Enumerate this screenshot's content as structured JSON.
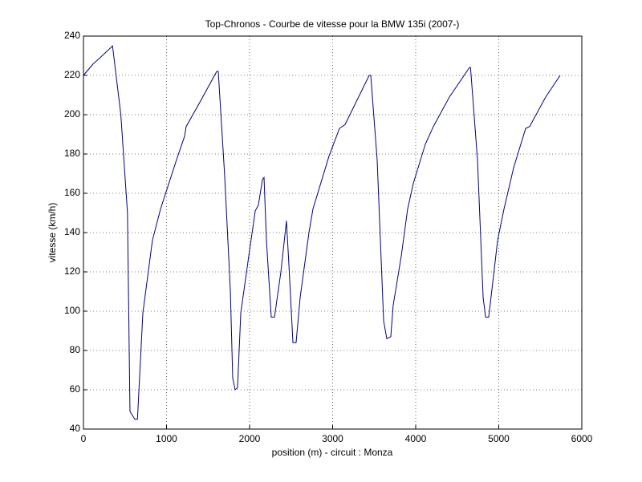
{
  "chart_data": {
    "type": "line",
    "title": "Top-Chronos - Courbe de vitesse pour la BMW 135i (2007-)",
    "x_label": "position (m) - circuit : Monza",
    "y_label": "vitesse (km/h)",
    "x": [
      0,
      100,
      120,
      200,
      350,
      450,
      530,
      560,
      618,
      650,
      715,
      830,
      928,
      1120,
      1217,
      1237,
      1410,
      1604,
      1623,
      1700,
      1768,
      1797,
      1826,
      1855,
      1894,
      1990,
      2068,
      2106,
      2155,
      2174,
      2203,
      2261,
      2300,
      2377,
      2444,
      2473,
      2522,
      2560,
      2609,
      2715,
      2763,
      2957,
      3082,
      3150,
      3440,
      3459,
      3536,
      3614,
      3652,
      3700,
      3729,
      3826,
      3903,
      3971,
      4116,
      4213,
      4406,
      4647,
      4660,
      4744,
      4812,
      4841,
      4879,
      4937,
      4986,
      5063,
      5179,
      5324,
      5372,
      5565,
      5739
    ],
    "series": [
      {
        "name": "vitesse",
        "color": "#00007f",
        "values": [
          220,
          225,
          226,
          229,
          235,
          200,
          150,
          49,
          45,
          45,
          99,
          136,
          152,
          177,
          189,
          194,
          207,
          222,
          222,
          169,
          111,
          66,
          60,
          61,
          99,
          128,
          151,
          154,
          167,
          168,
          136,
          97,
          97,
          120,
          146,
          124,
          84,
          84,
          107,
          140,
          152,
          179,
          193,
          195,
          220,
          220,
          177,
          95,
          86,
          87,
          103,
          128,
          152,
          165,
          185,
          194,
          209,
          224,
          224,
          177,
          107,
          97,
          97,
          118,
          136,
          152,
          173,
          193,
          194,
          209,
          220
        ]
      }
    ],
    "xlim": [
      0,
      6000
    ],
    "xticks": [
      0,
      1000,
      2000,
      3000,
      4000,
      5000,
      6000
    ],
    "ylim": [
      40,
      240
    ],
    "yticks": [
      40,
      60,
      80,
      100,
      120,
      140,
      160,
      180,
      200,
      220,
      240
    ],
    "grid": true
  }
}
